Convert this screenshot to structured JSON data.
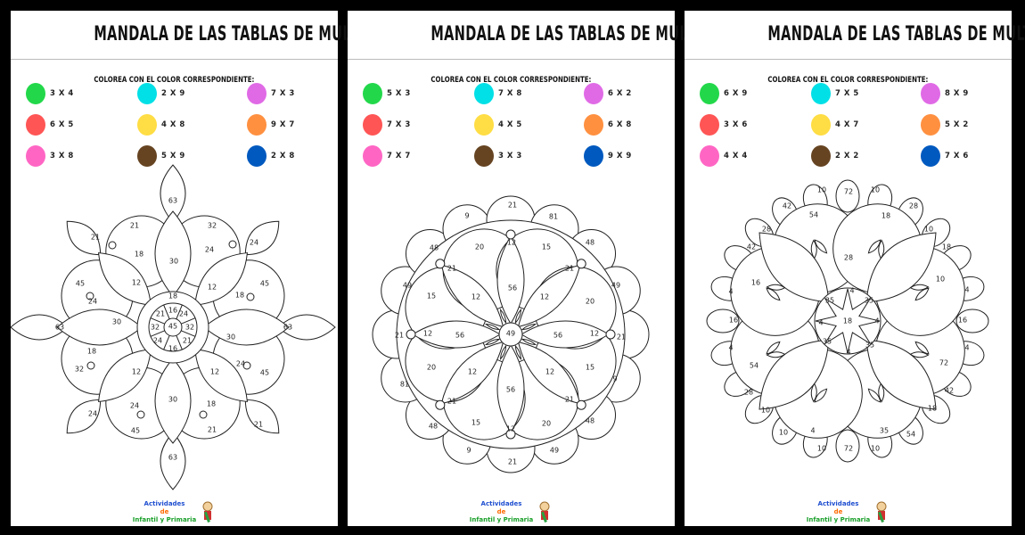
{
  "pages": [
    {
      "title": "MANDALA DE LAS TABLAS DE MULTIPLICAR",
      "instruction": "COLOREA CON EL COLOR CORRESPONDIENTE:",
      "legend": [
        {
          "color": "#22d84a",
          "label": "3 X 4"
        },
        {
          "color": "#00e0e6",
          "label": "2 X 9"
        },
        {
          "color": "#e06ae6",
          "label": "7 X 3"
        },
        {
          "color": "#ff5555",
          "label": "6 X 5"
        },
        {
          "color": "#ffdd44",
          "label": "4 X 8"
        },
        {
          "color": "#ff9040",
          "label": "9 X 7"
        },
        {
          "color": "#ff66c4",
          "label": "3 X 8"
        },
        {
          "color": "#664422",
          "label": "5 X 9"
        },
        {
          "color": "#0059bf",
          "label": "2 X 8"
        }
      ],
      "numbers": [
        "63",
        "21",
        "32",
        "21",
        "24",
        "18",
        "24",
        "30",
        "45",
        "12",
        "12",
        "18",
        "45",
        "24",
        "18",
        "16",
        "24",
        "21",
        "32",
        "45",
        "32",
        "24",
        "16",
        "21",
        "30",
        "63",
        "63",
        "30",
        "18",
        "32",
        "24",
        "45",
        "12",
        "12",
        "30",
        "24",
        "18",
        "24",
        "21",
        "45",
        "21",
        "63"
      ],
      "logo": {
        "line1": "Actividades",
        "line2": "de",
        "line3": "Infantil y Primaria"
      }
    },
    {
      "title": "MANDALA DE LAS TABLAS DE MULTIPLICAR",
      "instruction": "COLOREA CON EL COLOR CORRESPONDIENTE:",
      "legend": [
        {
          "color": "#22d84a",
          "label": "5 X 3"
        },
        {
          "color": "#00e0e6",
          "label": "7 X 8"
        },
        {
          "color": "#e06ae6",
          "label": "6 X 2"
        },
        {
          "color": "#ff5555",
          "label": "7 X 3"
        },
        {
          "color": "#ffdd44",
          "label": "4 X 5"
        },
        {
          "color": "#ff9040",
          "label": "6 X 8"
        },
        {
          "color": "#ff66c4",
          "label": "7 X 7"
        },
        {
          "color": "#664422",
          "label": "3 X 3"
        },
        {
          "color": "#0059bf",
          "label": "9 X 9"
        }
      ],
      "numbers": [
        "21",
        "9",
        "81",
        "48",
        "20",
        "12",
        "15",
        "48",
        "21",
        "21",
        "49",
        "15",
        "12",
        "56",
        "12",
        "20",
        "49",
        "21",
        "12",
        "56",
        "49",
        "56",
        "12",
        "21",
        "20",
        "12",
        "12",
        "15",
        "81",
        "9",
        "21",
        "56",
        "21",
        "48",
        "15",
        "12",
        "20",
        "48",
        "9",
        "21",
        "49"
      ],
      "logo": {
        "line1": "Actividades",
        "line2": "de",
        "line3": "Infantil y Primaria"
      }
    },
    {
      "title": "MANDALA DE LAS TABLAS DE MULTIPLICAR",
      "instruction": "COLOREA CON EL COLOR CORRESPONDIENTE:",
      "legend": [
        {
          "color": "#22d84a",
          "label": "6 X 9"
        },
        {
          "color": "#00e0e6",
          "label": "7 X 5"
        },
        {
          "color": "#e06ae6",
          "label": "8 X 9"
        },
        {
          "color": "#ff5555",
          "label": "3 X 6"
        },
        {
          "color": "#ffdd44",
          "label": "4 X 7"
        },
        {
          "color": "#ff9040",
          "label": "5 X 2"
        },
        {
          "color": "#ff66c4",
          "label": "4 X 4"
        },
        {
          "color": "#664422",
          "label": "2 X 2"
        },
        {
          "color": "#0059bf",
          "label": "7 X 6"
        }
      ],
      "numbers": [
        "10",
        "72",
        "10",
        "42",
        "28",
        "54",
        "18",
        "28",
        "10",
        "42",
        "18",
        "28",
        "16",
        "10",
        "4",
        "4",
        "35",
        "4",
        "35",
        "16",
        "4",
        "18",
        "4",
        "16",
        "35",
        "35",
        "4",
        "4",
        "4",
        "54",
        "72",
        "28",
        "42",
        "10",
        "18",
        "4",
        "35",
        "10",
        "54",
        "10",
        "72",
        "10"
      ],
      "logo": {
        "line1": "Actividades",
        "line2": "de",
        "line3": "Infantil y Primaria"
      }
    }
  ]
}
